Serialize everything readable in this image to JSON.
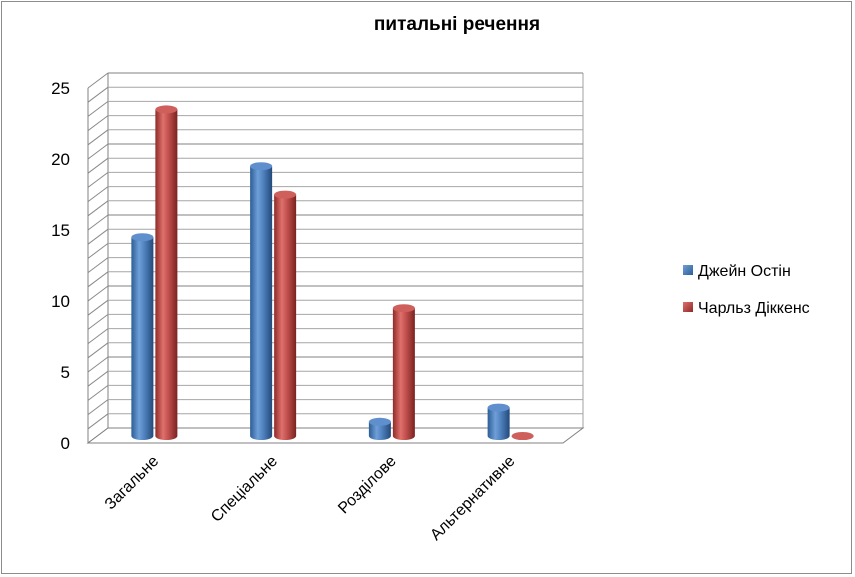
{
  "chart_data": {
    "type": "bar",
    "title": "питальні речення",
    "xlabel": "",
    "ylabel": "",
    "categories": [
      "Загальне",
      "Спеціальне",
      "Розділове",
      "Альтернативне"
    ],
    "series": [
      {
        "name": "Джейн Остін",
        "values": [
          14,
          19,
          1,
          2
        ],
        "color": "#4f81bd"
      },
      {
        "name": "Чарльз Діккенс",
        "values": [
          23,
          17,
          9,
          0
        ],
        "color": "#c0504d"
      }
    ],
    "ylim": [
      0,
      25
    ],
    "yticks": [
      0,
      5,
      10,
      15,
      20,
      25
    ],
    "grid": true,
    "legend_position": "right",
    "style": "3d-cylinder"
  }
}
